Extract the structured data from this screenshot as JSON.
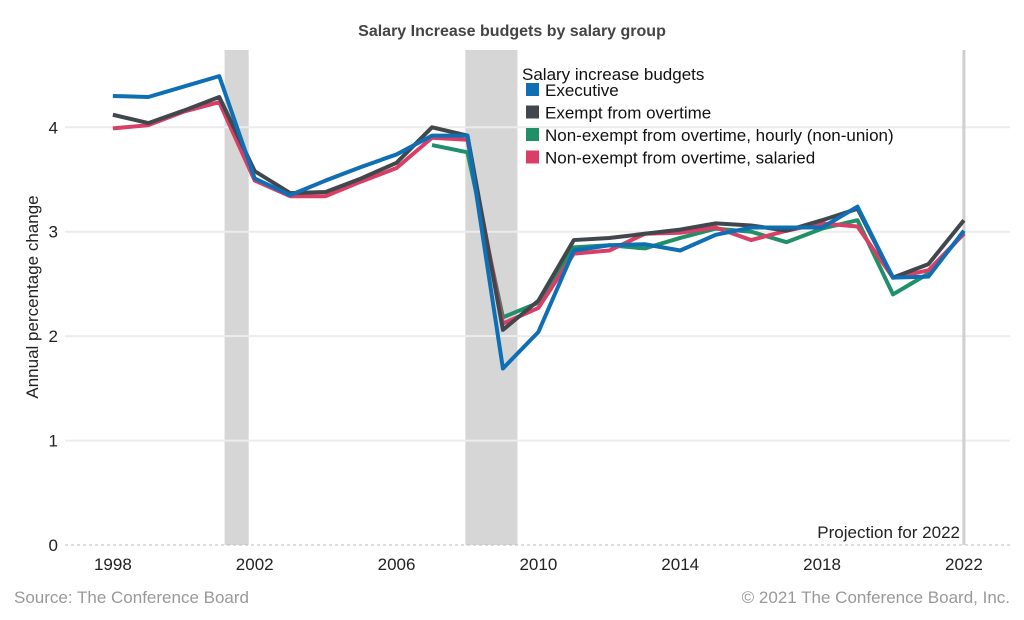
{
  "chart_data": {
    "type": "line",
    "title": "Salary Increase budgets by salary group",
    "xlabel": "",
    "ylabel": "Annual percentage change",
    "xlim": [
      1996.65,
      2023.3
    ],
    "ylim": [
      0,
      4.74
    ],
    "x_ticks": [
      1998,
      2002,
      2006,
      2010,
      2014,
      2018,
      2022
    ],
    "y_ticks": [
      0,
      1,
      2,
      3,
      4
    ],
    "grid": "horizontal",
    "legend": {
      "title": "Salary increase budgets",
      "placement": "top-right"
    },
    "shaded_periods": [
      [
        2001.15,
        2001.83
      ],
      [
        2007.94,
        2009.41
      ]
    ],
    "reference_line": {
      "x": 2022,
      "label": "Projection for 2022"
    },
    "series": [
      {
        "name": "Executive",
        "color": "#0f6fb5",
        "x": [
          1998,
          1999,
          2000,
          2001,
          2002,
          2003,
          2004,
          2005,
          2006,
          2007,
          2008,
          2009,
          2010,
          2011,
          2012,
          2013,
          2014,
          2015,
          2016,
          2017,
          2018,
          2019,
          2020,
          2021,
          2022
        ],
        "values": [
          4.3,
          4.29,
          4.39,
          4.49,
          3.51,
          3.35,
          3.49,
          3.62,
          3.74,
          3.92,
          3.92,
          1.69,
          2.04,
          2.82,
          2.87,
          2.88,
          2.82,
          2.97,
          3.04,
          3.04,
          3.04,
          3.24,
          2.56,
          2.57,
          3.01
        ]
      },
      {
        "name": "Exempt from overtime",
        "color": "#42474d",
        "x": [
          1998,
          1999,
          2000,
          2001,
          2002,
          2003,
          2004,
          2005,
          2006,
          2007,
          2008,
          2009,
          2010,
          2011,
          2012,
          2013,
          2014,
          2015,
          2016,
          2017,
          2018,
          2019,
          2020,
          2021,
          2022
        ],
        "values": [
          4.12,
          4.04,
          4.16,
          4.29,
          3.58,
          3.37,
          3.38,
          3.51,
          3.66,
          4.0,
          3.92,
          2.06,
          2.34,
          2.92,
          2.94,
          2.98,
          3.02,
          3.08,
          3.06,
          3.01,
          3.11,
          3.22,
          2.56,
          2.69,
          3.11
        ]
      },
      {
        "name": "Non-exempt from overtime, hourly (non-union)",
        "color": "#1f9068",
        "x": [
          2007,
          2008,
          2009,
          2010,
          2011,
          2012,
          2013,
          2014,
          2015,
          2016,
          2017,
          2018,
          2019,
          2020,
          2021,
          2022
        ],
        "values": [
          3.83,
          3.76,
          2.18,
          2.32,
          2.85,
          2.87,
          2.84,
          2.94,
          3.03,
          3.0,
          2.9,
          3.03,
          3.11,
          2.4,
          2.6,
          2.99
        ]
      },
      {
        "name": "Non-exempt from overtime, salaried",
        "color": "#d93f66",
        "x": [
          1998,
          1999,
          2000,
          2001,
          2002,
          2003,
          2004,
          2005,
          2006,
          2007,
          2008,
          2009,
          2010,
          2011,
          2012,
          2013,
          2014,
          2015,
          2016,
          2017,
          2018,
          2019,
          2020,
          2021,
          2022
        ],
        "values": [
          3.99,
          4.02,
          4.15,
          4.24,
          3.49,
          3.34,
          3.34,
          3.48,
          3.61,
          3.9,
          3.88,
          2.12,
          2.27,
          2.79,
          2.82,
          2.98,
          2.99,
          3.04,
          2.92,
          3.01,
          3.08,
          3.05,
          2.56,
          2.63,
          2.98
        ]
      }
    ]
  },
  "footer": {
    "source": "Source: The Conference Board",
    "copyright": "© 2021 The Conference Board, Inc."
  }
}
